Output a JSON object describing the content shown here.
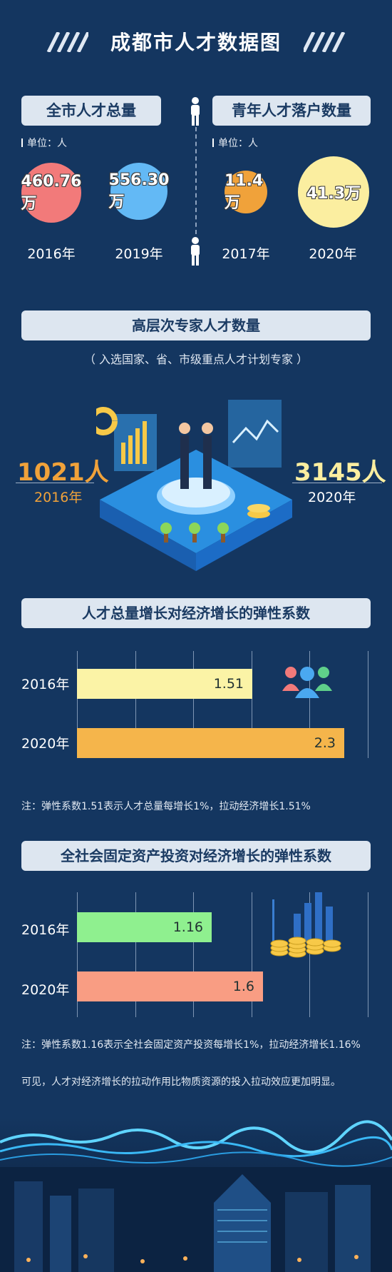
{
  "title": "成都市人才数据图",
  "section1": {
    "left_pill": "全市人才总量",
    "right_pill": "青年人才落户数量",
    "left_unit": "单位：人",
    "right_unit": "单位：人",
    "circles": [
      {
        "value": "460.76万",
        "year": "2016年",
        "color": "#f27a7a"
      },
      {
        "value": "556.30万",
        "year": "2019年",
        "color": "#63b9f5"
      },
      {
        "value": "11.4万",
        "year": "2017年",
        "color": "#f0a23a"
      },
      {
        "value": "41.3万",
        "year": "2020年",
        "color": "#fbeea0"
      }
    ]
  },
  "section2": {
    "pill": "高层次专家人才数量",
    "subtitle": "（ 入选国家、省、市级重点人才计划专家 ）",
    "left_value": "1021人",
    "left_year": "2016年",
    "right_value": "3145人",
    "right_year": "2020年",
    "left_color": "#f0a23a",
    "right_color": "#fbeea0"
  },
  "chart_data": [
    {
      "type": "bar",
      "title": "人才总量增长对经济增长的弹性系数",
      "categories": [
        "2016年",
        "2020年"
      ],
      "values": [
        1.51,
        2.3
      ],
      "value_labels": [
        "1.51",
        "2.3"
      ],
      "colors": [
        "#fbf3a6",
        "#f5b54b"
      ],
      "xlim": [
        0,
        2.5
      ],
      "grid": true,
      "note": "注：弹性系数1.51表示人才总量每增长1%，拉动经济增长1.51%"
    },
    {
      "type": "bar",
      "title": "全社会固定资产投资对经济增长的弹性系数",
      "categories": [
        "2016年",
        "2020年"
      ],
      "values": [
        1.16,
        1.6
      ],
      "value_labels": [
        "1.16",
        "1.6"
      ],
      "colors": [
        "#8ff08f",
        "#f99d83"
      ],
      "xlim": [
        0,
        2.5
      ],
      "grid": true,
      "note": "注：弹性系数1.16表示全社会固定资产投资每增长1%，拉动经济增长1.16%"
    }
  ],
  "conclusion": "可见，人才对经济增长的拉动作用比物质资源的投入拉动效应更加明显。",
  "icons": {
    "person": "person-icon",
    "people": "people-group-icon",
    "coins": "coin-stack-icon",
    "handshake": "handshake-illustration",
    "city": "city-night-illustration"
  }
}
